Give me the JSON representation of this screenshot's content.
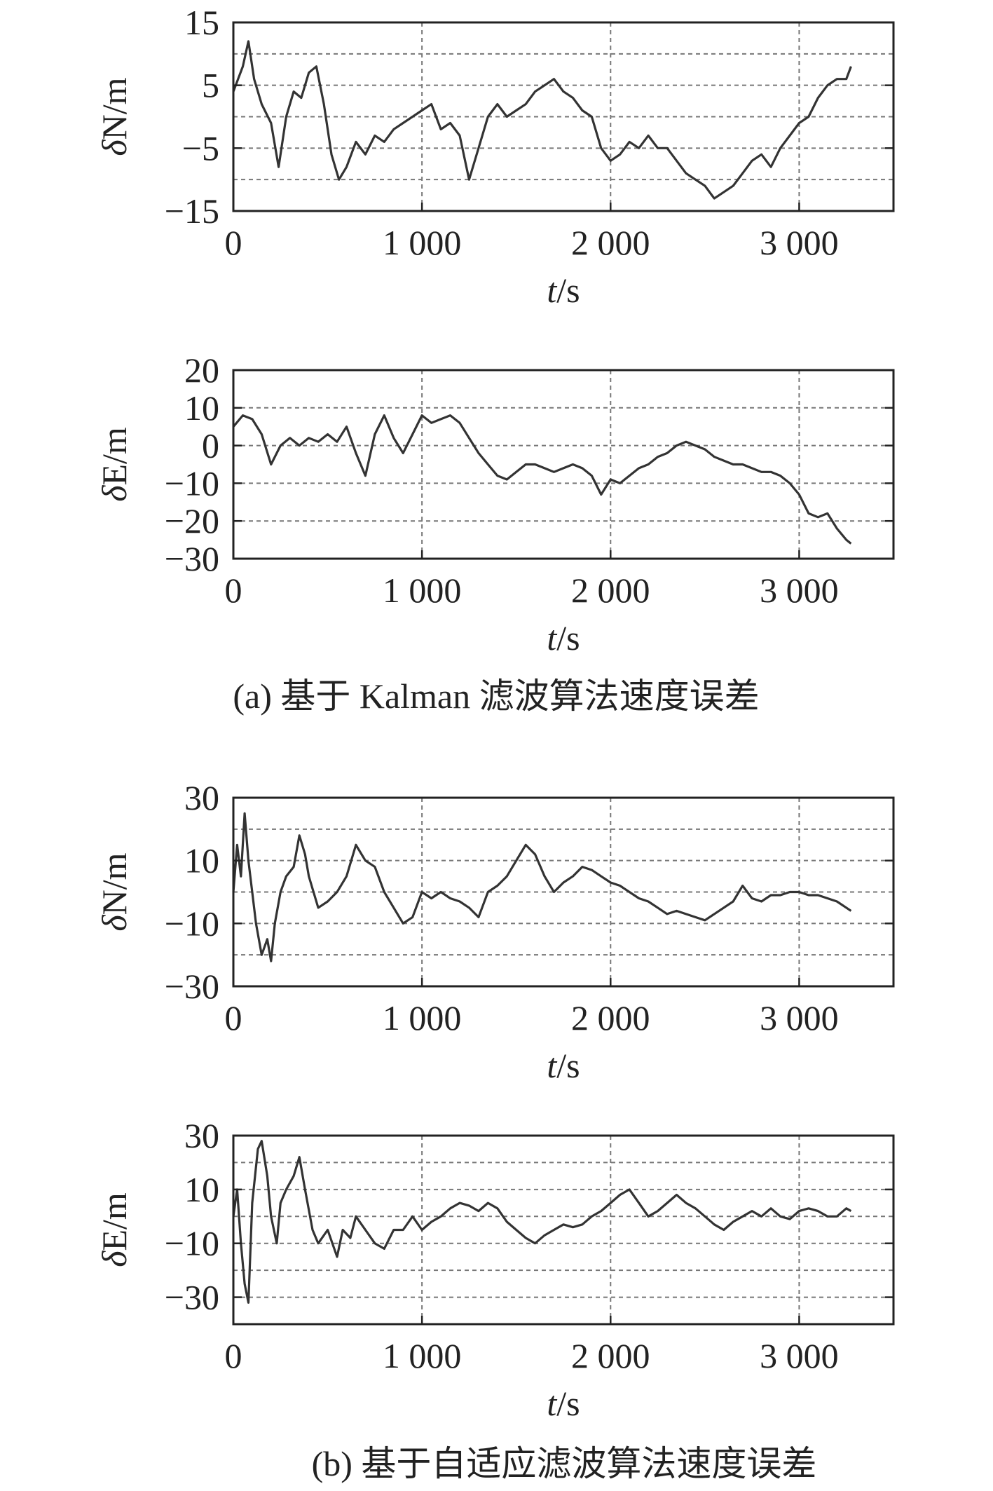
{
  "figure": {
    "caption_a": "(a) 基于 Kalman 滤波算法速度误差",
    "caption_b": "(b) 基于自适应滤波算法速度误差"
  },
  "chart_data": [
    {
      "id": "a-north",
      "type": "line",
      "xlabel": "t/s",
      "ylabel": "δN/m",
      "xlim": [
        0,
        3500
      ],
      "ylim": [
        -15,
        15
      ],
      "xticks": [
        0,
        1000,
        2000,
        3000
      ],
      "xtick_labels": [
        "0",
        "1 000",
        "2 000",
        "3 000"
      ],
      "yticks": [
        15,
        5,
        -5,
        -15
      ],
      "ytick_labels": [
        "15",
        "5",
        "−5",
        "−15"
      ],
      "ygrid": [
        15,
        10,
        5,
        0,
        -5,
        -10,
        -15
      ],
      "grid": true,
      "series": [
        {
          "line_color": "#333333",
          "x": [
            0,
            50,
            80,
            110,
            150,
            200,
            240,
            280,
            320,
            360,
            400,
            440,
            480,
            520,
            560,
            600,
            650,
            700,
            750,
            800,
            850,
            900,
            950,
            1000,
            1050,
            1100,
            1150,
            1200,
            1250,
            1300,
            1350,
            1400,
            1450,
            1500,
            1550,
            1600,
            1650,
            1700,
            1750,
            1800,
            1850,
            1900,
            1950,
            2000,
            2050,
            2100,
            2150,
            2200,
            2250,
            2300,
            2350,
            2400,
            2450,
            2500,
            2550,
            2600,
            2650,
            2700,
            2750,
            2800,
            2850,
            2900,
            2950,
            3000,
            3050,
            3100,
            3150,
            3200,
            3250,
            3275
          ],
          "y": [
            4,
            8,
            12,
            6,
            2,
            -1,
            -8,
            0,
            4,
            3,
            7,
            8,
            2,
            -6,
            -10,
            -8,
            -4,
            -6,
            -3,
            -4,
            -2,
            -1,
            0,
            1,
            2,
            -2,
            -1,
            -3,
            -10,
            -5,
            0,
            2,
            0,
            1,
            2,
            4,
            5,
            6,
            4,
            3,
            1,
            0,
            -5,
            -7,
            -6,
            -4,
            -5,
            -3,
            -5,
            -5,
            -7,
            -9,
            -10,
            -11,
            -13,
            -12,
            -11,
            -9,
            -7,
            -6,
            -8,
            -5,
            -3,
            -1,
            0,
            3,
            5,
            6,
            6,
            8
          ]
        }
      ]
    },
    {
      "id": "a-east",
      "type": "line",
      "xlabel": "t/s",
      "ylabel": "δE/m",
      "xlim": [
        0,
        3500
      ],
      "ylim": [
        -30,
        20
      ],
      "xticks": [
        0,
        1000,
        2000,
        3000
      ],
      "xtick_labels": [
        "0",
        "1 000",
        "2 000",
        "3 000"
      ],
      "yticks": [
        20,
        10,
        0,
        -10,
        -20,
        -30
      ],
      "ytick_labels": [
        "20",
        "10",
        "0",
        "−10",
        "−20",
        "−30"
      ],
      "ygrid": [
        20,
        10,
        0,
        -10,
        -20,
        -30
      ],
      "grid": true,
      "series": [
        {
          "line_color": "#333333",
          "x": [
            0,
            50,
            100,
            150,
            200,
            250,
            300,
            350,
            400,
            450,
            500,
            550,
            600,
            650,
            700,
            750,
            800,
            850,
            900,
            950,
            1000,
            1050,
            1100,
            1150,
            1200,
            1250,
            1300,
            1350,
            1400,
            1450,
            1500,
            1550,
            1600,
            1650,
            1700,
            1750,
            1800,
            1850,
            1900,
            1950,
            2000,
            2050,
            2100,
            2150,
            2200,
            2250,
            2300,
            2350,
            2400,
            2450,
            2500,
            2550,
            2600,
            2650,
            2700,
            2750,
            2800,
            2850,
            2900,
            2950,
            3000,
            3050,
            3100,
            3150,
            3200,
            3250,
            3275
          ],
          "y": [
            5,
            8,
            7,
            3,
            -5,
            0,
            2,
            0,
            2,
            1,
            3,
            1,
            5,
            -2,
            -8,
            3,
            8,
            2,
            -2,
            3,
            8,
            6,
            7,
            8,
            6,
            2,
            -2,
            -5,
            -8,
            -9,
            -7,
            -5,
            -5,
            -6,
            -7,
            -6,
            -5,
            -6,
            -8,
            -13,
            -9,
            -10,
            -8,
            -6,
            -5,
            -3,
            -2,
            0,
            1,
            0,
            -1,
            -3,
            -4,
            -5,
            -5,
            -6,
            -7,
            -7,
            -8,
            -10,
            -13,
            -18,
            -19,
            -18,
            -22,
            -25,
            -26
          ]
        }
      ]
    },
    {
      "id": "b-north",
      "type": "line",
      "xlabel": "t/s",
      "ylabel": "δN/m",
      "xlim": [
        0,
        3500
      ],
      "ylim": [
        -30,
        30
      ],
      "xticks": [
        0,
        1000,
        2000,
        3000
      ],
      "xtick_labels": [
        "0",
        "1 000",
        "2 000",
        "3 000"
      ],
      "yticks": [
        30,
        10,
        -10,
        -30
      ],
      "ytick_labels": [
        "30",
        "10",
        "−10",
        "−30"
      ],
      "ygrid": [
        30,
        20,
        10,
        0,
        -10,
        -20,
        -30
      ],
      "grid": true,
      "series": [
        {
          "line_color": "#333333",
          "x": [
            0,
            20,
            40,
            60,
            80,
            100,
            120,
            150,
            180,
            200,
            220,
            250,
            280,
            320,
            350,
            380,
            400,
            450,
            500,
            550,
            600,
            650,
            700,
            750,
            800,
            850,
            900,
            950,
            1000,
            1050,
            1100,
            1150,
            1200,
            1250,
            1300,
            1350,
            1400,
            1450,
            1500,
            1550,
            1600,
            1650,
            1700,
            1750,
            1800,
            1850,
            1900,
            1950,
            2000,
            2050,
            2100,
            2150,
            2200,
            2250,
            2300,
            2350,
            2400,
            2450,
            2500,
            2550,
            2600,
            2650,
            2700,
            2750,
            2800,
            2850,
            2900,
            2950,
            3000,
            3050,
            3100,
            3150,
            3200,
            3250,
            3275
          ],
          "y": [
            0,
            15,
            5,
            25,
            10,
            0,
            -10,
            -20,
            -15,
            -22,
            -10,
            0,
            5,
            8,
            18,
            12,
            5,
            -5,
            -3,
            0,
            5,
            15,
            10,
            8,
            0,
            -5,
            -10,
            -8,
            0,
            -2,
            0,
            -2,
            -3,
            -5,
            -8,
            0,
            2,
            5,
            10,
            15,
            12,
            5,
            0,
            3,
            5,
            8,
            7,
            5,
            3,
            2,
            0,
            -2,
            -3,
            -5,
            -7,
            -6,
            -7,
            -8,
            -9,
            -7,
            -5,
            -3,
            2,
            -2,
            -3,
            -1,
            -1,
            0,
            0,
            -1,
            -1,
            -2,
            -3,
            -5,
            -6
          ]
        }
      ]
    },
    {
      "id": "b-east",
      "type": "line",
      "xlabel": "t/s",
      "ylabel": "δE/m",
      "xlim": [
        0,
        3500
      ],
      "ylim": [
        -40,
        30
      ],
      "xticks": [
        0,
        1000,
        2000,
        3000
      ],
      "xtick_labels": [
        "0",
        "1 000",
        "2 000",
        "3 000"
      ],
      "yticks": [
        30,
        10,
        -10,
        -30
      ],
      "ytick_labels": [
        "30",
        "10",
        "−10",
        "−30"
      ],
      "ygrid": [
        30,
        20,
        10,
        0,
        -10,
        -20,
        -30
      ],
      "grid": true,
      "series": [
        {
          "line_color": "#333333",
          "x": [
            0,
            20,
            40,
            60,
            80,
            100,
            130,
            150,
            180,
            200,
            230,
            250,
            280,
            320,
            350,
            380,
            420,
            450,
            500,
            550,
            580,
            620,
            650,
            700,
            750,
            800,
            850,
            900,
            950,
            1000,
            1050,
            1100,
            1150,
            1200,
            1250,
            1300,
            1350,
            1400,
            1450,
            1500,
            1550,
            1600,
            1650,
            1700,
            1750,
            1800,
            1850,
            1900,
            1950,
            2000,
            2050,
            2100,
            2150,
            2200,
            2250,
            2300,
            2350,
            2400,
            2450,
            2500,
            2550,
            2600,
            2650,
            2700,
            2750,
            2800,
            2850,
            2900,
            2950,
            3000,
            3050,
            3100,
            3150,
            3200,
            3250,
            3275
          ],
          "y": [
            0,
            10,
            -10,
            -25,
            -32,
            5,
            25,
            28,
            15,
            0,
            -10,
            5,
            10,
            15,
            22,
            10,
            -5,
            -10,
            -5,
            -15,
            -5,
            -8,
            0,
            -5,
            -10,
            -12,
            -5,
            -5,
            0,
            -5,
            -2,
            0,
            3,
            5,
            4,
            2,
            5,
            3,
            -2,
            -5,
            -8,
            -10,
            -7,
            -5,
            -3,
            -4,
            -3,
            0,
            2,
            5,
            8,
            10,
            5,
            0,
            2,
            5,
            8,
            5,
            3,
            0,
            -3,
            -5,
            -2,
            0,
            2,
            0,
            3,
            0,
            -1,
            2,
            3,
            2,
            0,
            0,
            3,
            2
          ]
        }
      ]
    }
  ]
}
